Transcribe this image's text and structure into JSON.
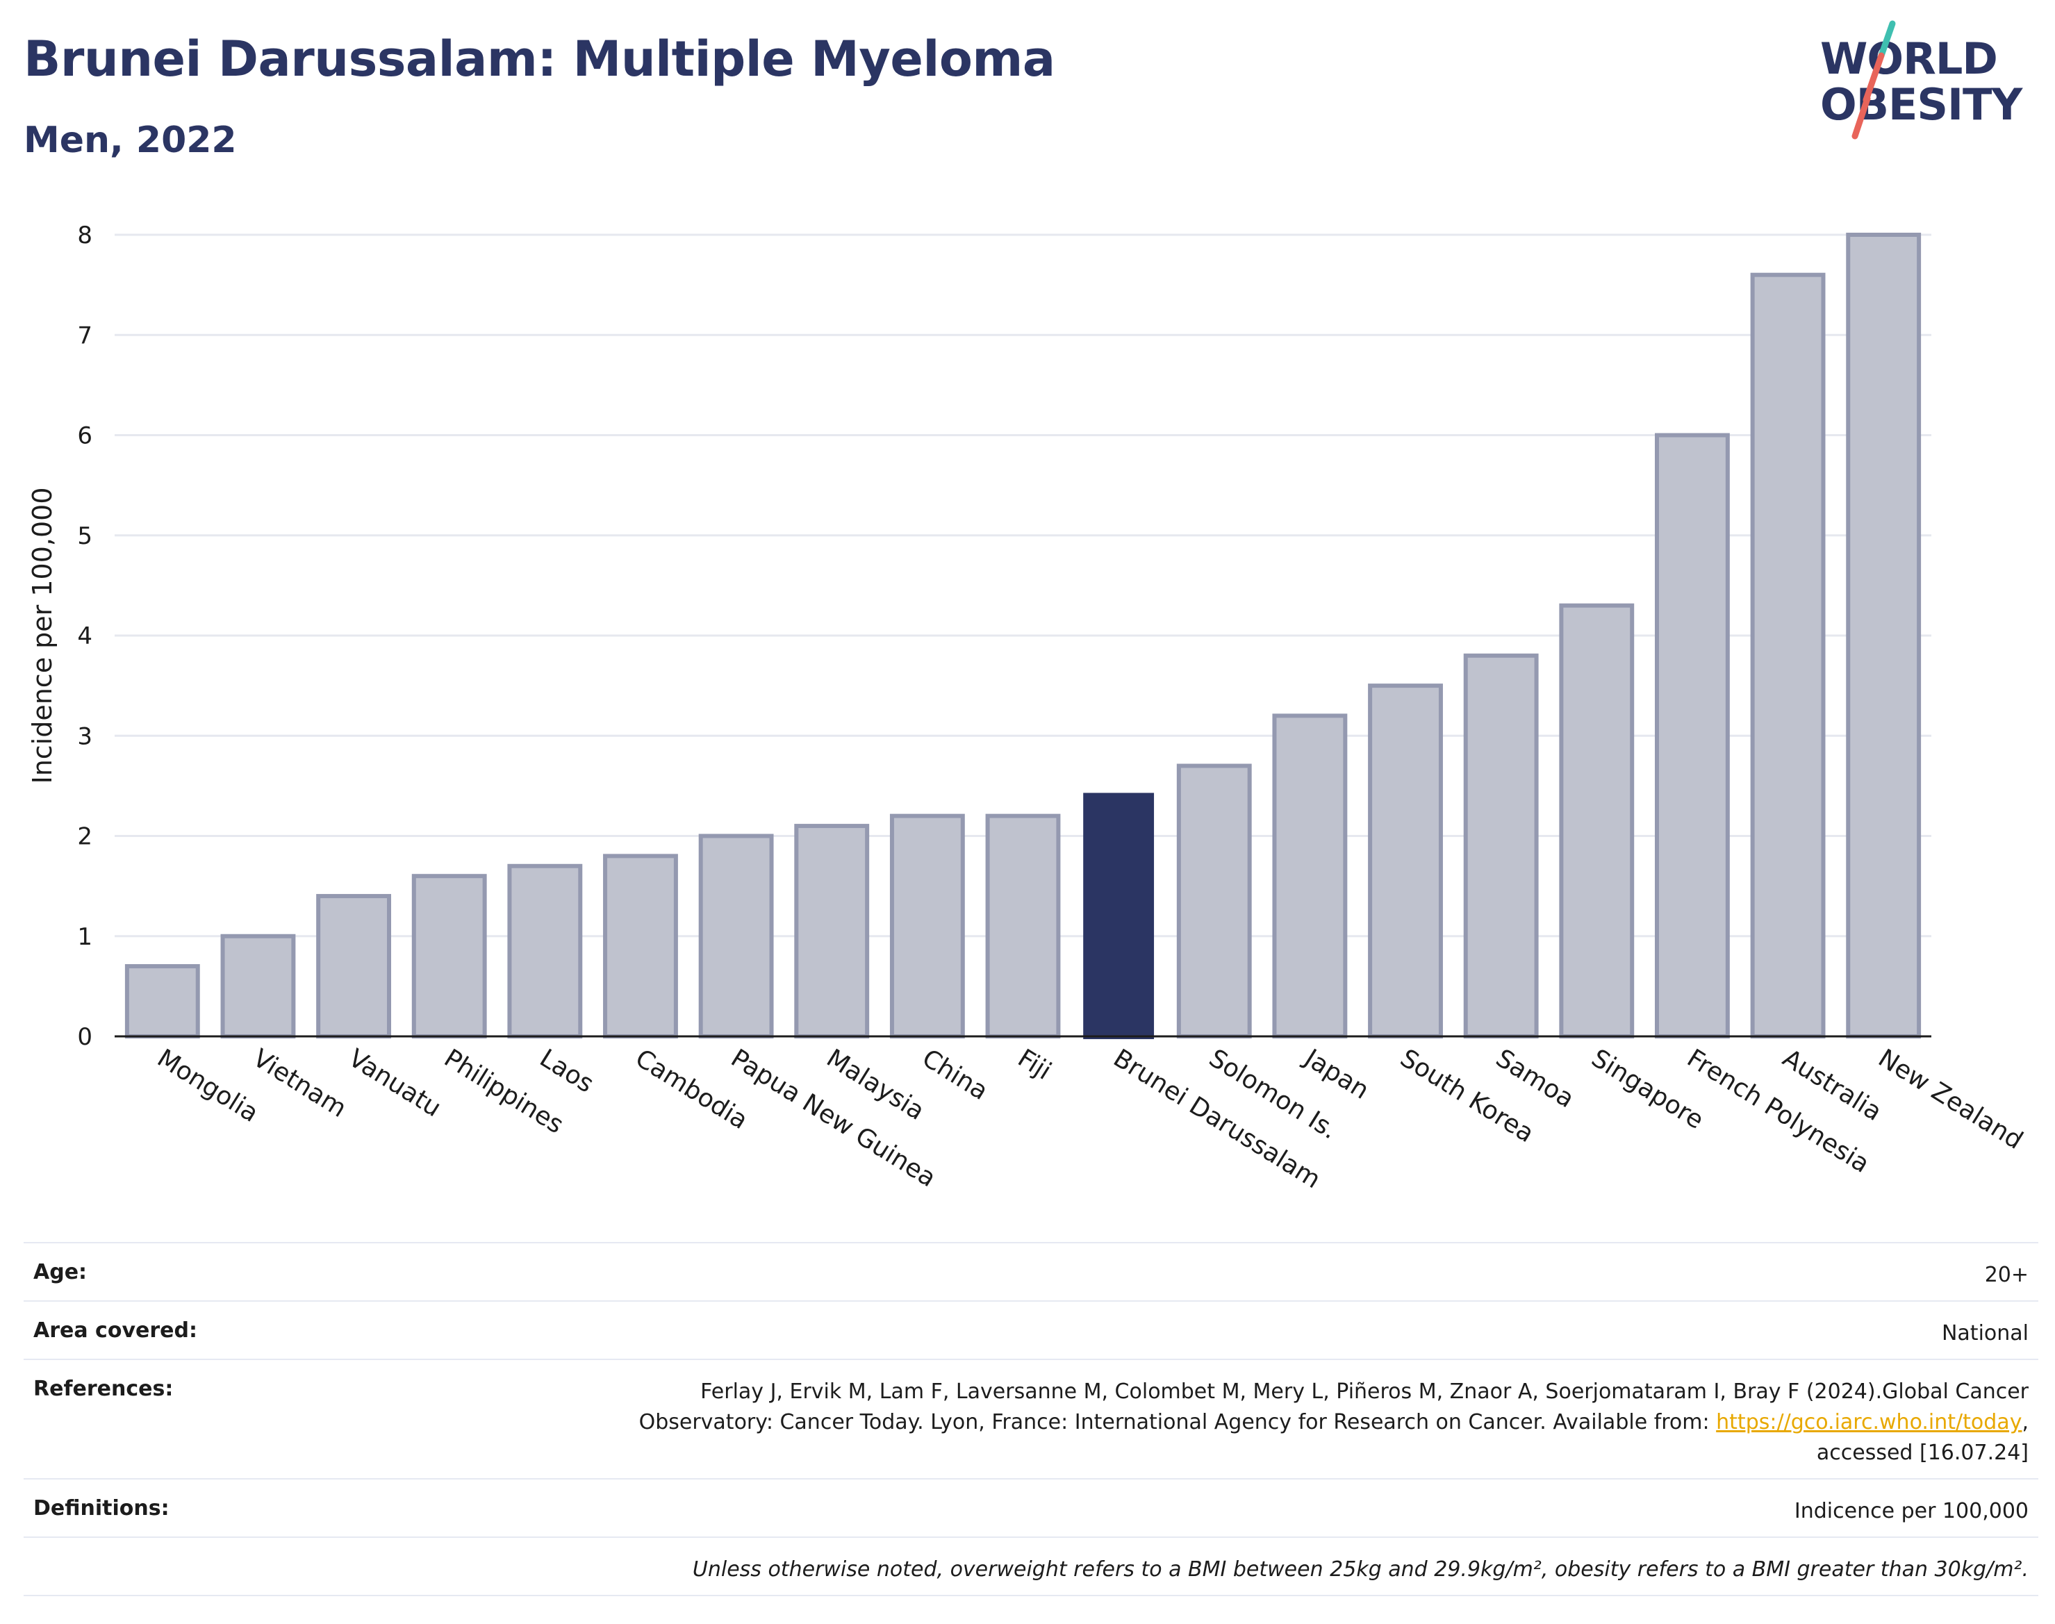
{
  "header": {
    "title": "Brunei Darussalam: Multiple Myeloma",
    "subtitle": "Men, 2022"
  },
  "logo": {
    "line1": "WORLD",
    "line2": "OBESITY",
    "text_color": "#2b3563",
    "slash_colors": [
      "#3fbfb0",
      "#e8645a"
    ]
  },
  "colors": {
    "bar_default": "#bfc2ce",
    "bar_default_stroke": "#9499b0",
    "bar_highlight": "#2b3563",
    "grid": "#e6e8ef",
    "axis": "#1c1c1c"
  },
  "chart_data": {
    "type": "bar",
    "ylabel": "Incidence per 100,000",
    "xlabel": "",
    "ylim": [
      0,
      8
    ],
    "yticks": [
      0,
      1,
      2,
      3,
      4,
      5,
      6,
      7,
      8
    ],
    "grid": true,
    "highlight": "Brunei Darussalam",
    "categories": [
      "Mongolia",
      "Vietnam",
      "Vanuatu",
      "Philippines",
      "Laos",
      "Cambodia",
      "Papua New Guinea",
      "Malaysia",
      "China",
      "Fiji",
      "Brunei Darussalam",
      "Solomon Is.",
      "Japan",
      "South Korea",
      "Samoa",
      "Singapore",
      "French Polynesia",
      "Australia",
      "New Zealand"
    ],
    "values": [
      0.7,
      1.0,
      1.4,
      1.6,
      1.7,
      1.8,
      2.0,
      2.1,
      2.2,
      2.2,
      2.43,
      2.7,
      3.2,
      3.5,
      3.8,
      4.3,
      6.0,
      7.6,
      8.0
    ]
  },
  "info": {
    "age_label": "Age:",
    "age_value": "20+",
    "area_label": "Area covered:",
    "area_value": "National",
    "references_label": "References:",
    "references_line1": "Ferlay J, Ervik M, Lam F, Laversanne M, Colombet M, Mery L, Piñeros M, Znaor A, Soerjomataram I, Bray F (2024).Global Cancer",
    "references_line2": "Observatory: Cancer Today. Lyon, France: International Agency for Research on Cancer. Available from: ",
    "references_link": "https://gco.iarc.who.int/today",
    "references_line3": "accessed [16.07.24]",
    "definitions_label": "Definitions:",
    "definitions_value": "Indicence per 100,000",
    "note": "Unless otherwise noted, overweight refers to a BMI between 25kg and 29.9kg/m², obesity refers to a BMI greater than 30kg/m²."
  }
}
